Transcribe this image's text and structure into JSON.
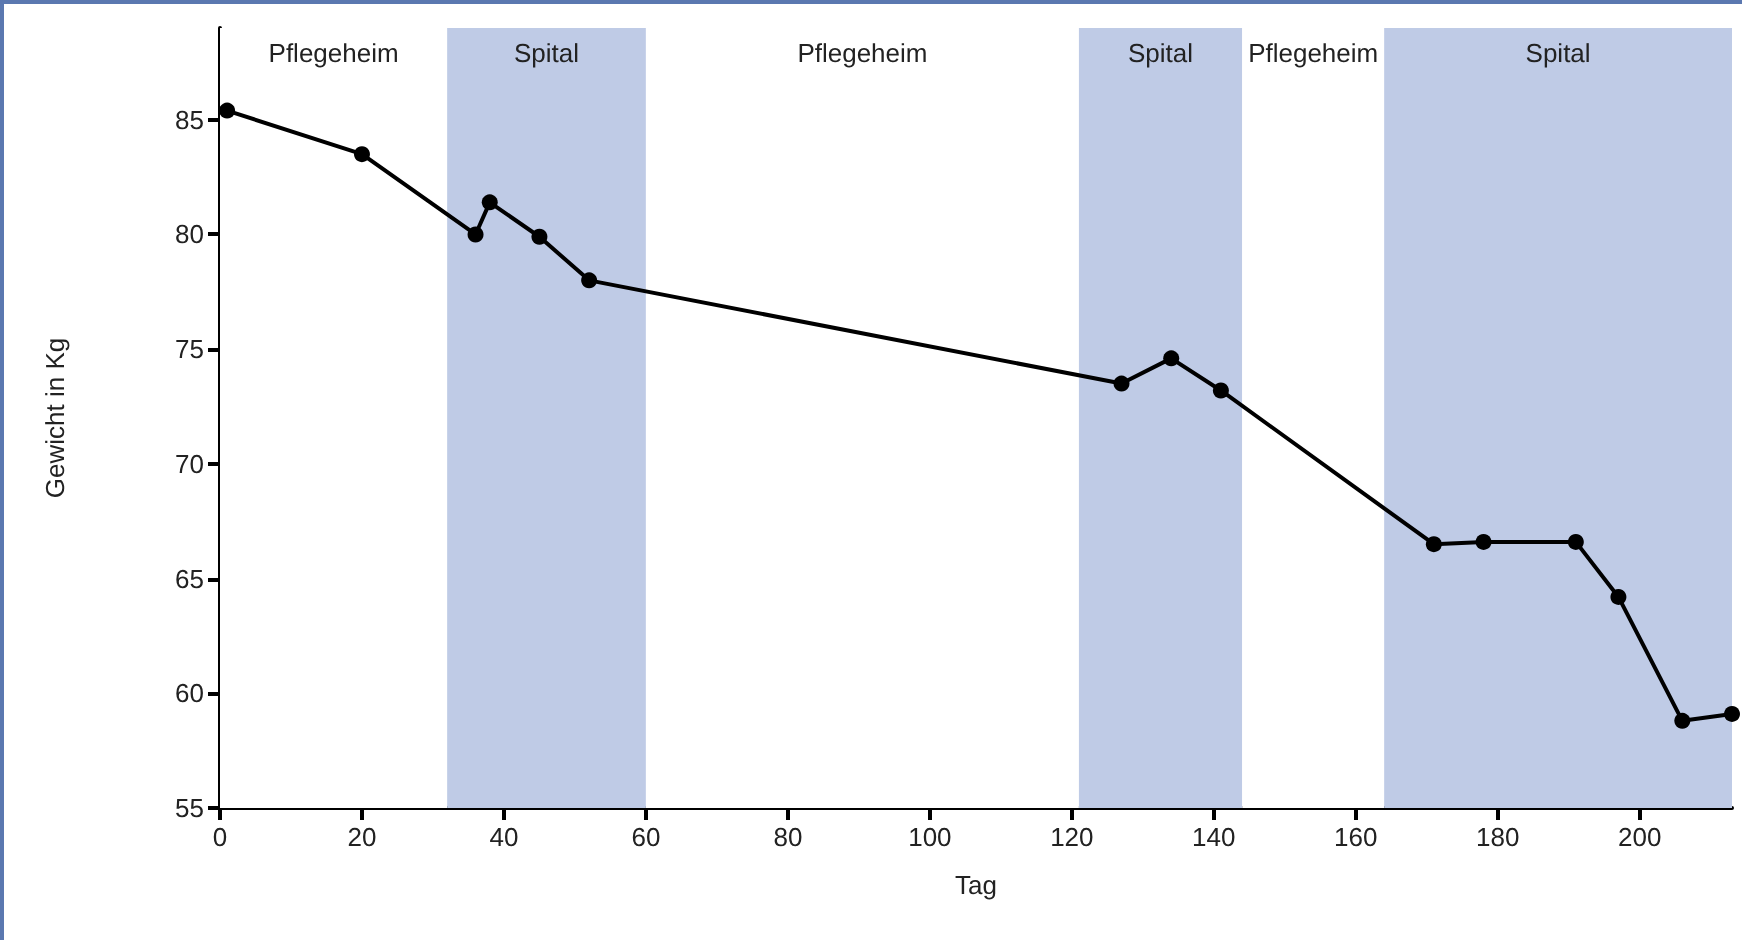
{
  "chart_data": {
    "type": "line",
    "xlabel": "Tag",
    "ylabel": "Gewicht in Kg",
    "x": [
      1,
      20,
      36,
      38,
      45,
      52,
      127,
      134,
      141,
      171,
      178,
      191,
      197,
      206,
      213
    ],
    "series": [
      {
        "color": "#000000",
        "values": [
          85.4,
          83.5,
          80.0,
          81.4,
          79.9,
          78.0,
          73.5,
          74.6,
          73.2,
          66.5,
          66.6,
          66.6,
          64.2,
          58.8,
          59.1
        ]
      }
    ],
    "xlim": [
      0,
      213
    ],
    "xticks": [
      0,
      20,
      40,
      60,
      80,
      100,
      120,
      140,
      160,
      180,
      200
    ],
    "ylim": [
      55,
      89
    ],
    "yticks": [
      55,
      60,
      65,
      70,
      75,
      80,
      85
    ],
    "bands": [
      {
        "axis": "x",
        "from": 0,
        "to": 32,
        "label": "Pflegeheim",
        "color": "#ffffff"
      },
      {
        "axis": "x",
        "from": 32,
        "to": 60,
        "label": "Spital",
        "color": "#bfcbe6"
      },
      {
        "axis": "x",
        "from": 60,
        "to": 121,
        "label": "Pflegeheim",
        "color": "#ffffff"
      },
      {
        "axis": "x",
        "from": 121,
        "to": 144,
        "label": "Spital",
        "color": "#bfcbe6"
      },
      {
        "axis": "x",
        "from": 144,
        "to": 164,
        "label": "Pflegeheim",
        "color": "#ffffff"
      },
      {
        "axis": "x",
        "from": 164,
        "to": 213,
        "label": "Spital",
        "color": "#bfcbe6"
      }
    ],
    "grid": false,
    "marker": "circle",
    "line_style": "solid"
  }
}
